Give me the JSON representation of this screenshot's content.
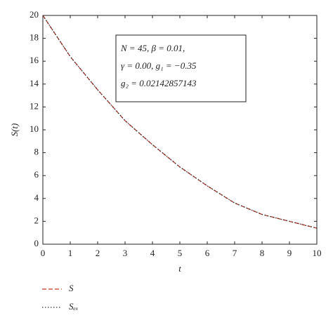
{
  "chart_data": {
    "type": "line",
    "x": [
      0,
      1,
      2,
      3,
      4,
      5,
      6,
      7,
      8,
      9,
      10
    ],
    "series": [
      {
        "name": "S",
        "color": "#c0392b",
        "dash": "dashed",
        "values": [
          20,
          16.4,
          13.5,
          10.8,
          8.7,
          6.75,
          5.1,
          3.6,
          2.6,
          2.0,
          1.4
        ]
      },
      {
        "name": "Sₑₓ",
        "color": "#333333",
        "dash": "dotted",
        "values": [
          20,
          16.4,
          13.5,
          10.8,
          8.7,
          6.75,
          5.1,
          3.6,
          2.6,
          2.0,
          1.4
        ]
      }
    ],
    "xlabel": "t",
    "ylabel": "S(t)",
    "xlim": [
      0,
      10
    ],
    "xticks": [
      0,
      1,
      2,
      3,
      4,
      5,
      6,
      7,
      8,
      9,
      10
    ],
    "ylim": [
      0,
      20
    ],
    "yticks": [
      0,
      2,
      4,
      6,
      8,
      10,
      12,
      14,
      16,
      18,
      20
    ],
    "annotation": [
      "N = 45, β = 0.01,",
      "γ = 0.00, g₁ = −0.35",
      "g₂ = 0.02142857143"
    ],
    "legend": "below"
  }
}
